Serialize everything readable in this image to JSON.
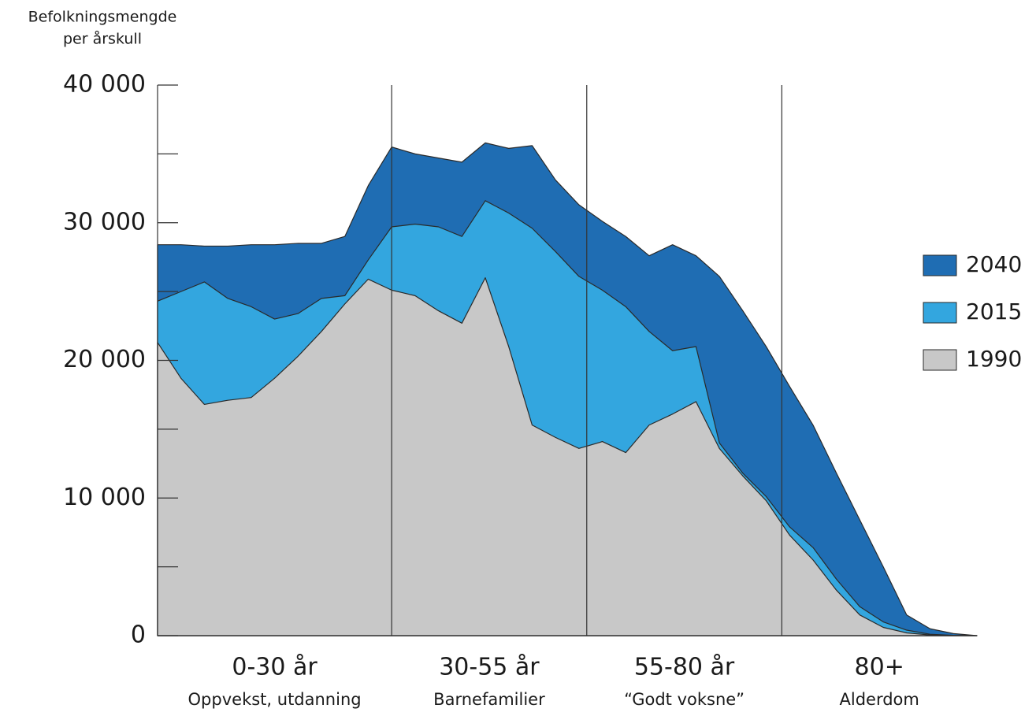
{
  "chart_data": {
    "type": "area",
    "ylabel_lines": [
      "Befolkningsmengde",
      "per årskull"
    ],
    "x": [
      0,
      3,
      6,
      9,
      12,
      15,
      18,
      21,
      24,
      27,
      30,
      33,
      36,
      39,
      42,
      45,
      48,
      51,
      54,
      57,
      60,
      63,
      66,
      69,
      72,
      75,
      78,
      81,
      84,
      87,
      90,
      93,
      96,
      99,
      102,
      105
    ],
    "series": [
      {
        "name": "2040",
        "color": "#1f6db3",
        "values": [
          28400,
          28400,
          28300,
          28300,
          28400,
          28400,
          28500,
          28500,
          29000,
          32700,
          35500,
          35000,
          34700,
          34400,
          35800,
          35400,
          35600,
          33100,
          31300,
          30100,
          29000,
          27600,
          28400,
          27600,
          26100,
          23600,
          21000,
          18100,
          15300,
          11800,
          8400,
          5000,
          1500,
          500,
          150,
          0
        ]
      },
      {
        "name": "2015",
        "color": "#33a6df",
        "values": [
          24300,
          25000,
          25700,
          24500,
          23900,
          23000,
          23400,
          24500,
          24700,
          27300,
          29700,
          29900,
          29700,
          29000,
          31600,
          30700,
          29600,
          27900,
          26100,
          25100,
          23900,
          22100,
          20700,
          21000,
          14000,
          11800,
          10100,
          7900,
          6400,
          4100,
          2100,
          1000,
          400,
          100,
          20,
          0
        ]
      },
      {
        "name": "1990",
        "color": "#c8c8c8",
        "values": [
          21300,
          18700,
          16800,
          17100,
          17300,
          18700,
          20300,
          22100,
          24100,
          25900,
          25100,
          24700,
          23600,
          22700,
          26000,
          21000,
          15300,
          14400,
          13600,
          14100,
          13300,
          15300,
          16100,
          17000,
          13600,
          11600,
          9800,
          7300,
          5500,
          3300,
          1500,
          600,
          200,
          50,
          0,
          0
        ]
      }
    ],
    "xlim": [
      0,
      105
    ],
    "ylim": [
      0,
      40000
    ],
    "yticks": [
      {
        "value": 0,
        "label": "0"
      },
      {
        "value": 10000,
        "label": "10 000"
      },
      {
        "value": 20000,
        "label": "20 000"
      },
      {
        "value": 30000,
        "label": "30 000"
      },
      {
        "value": 40000,
        "label": "40 000"
      }
    ],
    "yminor_ticks": [
      5000,
      15000,
      25000,
      35000
    ],
    "groups": [
      {
        "label": "0-30 år",
        "sublabel": "Oppvekst, utdanning",
        "start": 0,
        "end": 30
      },
      {
        "label": "30-55 år",
        "sublabel": "Barnefamilier",
        "start": 30,
        "end": 55
      },
      {
        "label": "55-80 år",
        "sublabel": "“Godt voksne”",
        "start": 55,
        "end": 80
      },
      {
        "label": "80+",
        "sublabel": "Alderdom",
        "start": 80,
        "end": 105
      }
    ],
    "legend": "right"
  }
}
